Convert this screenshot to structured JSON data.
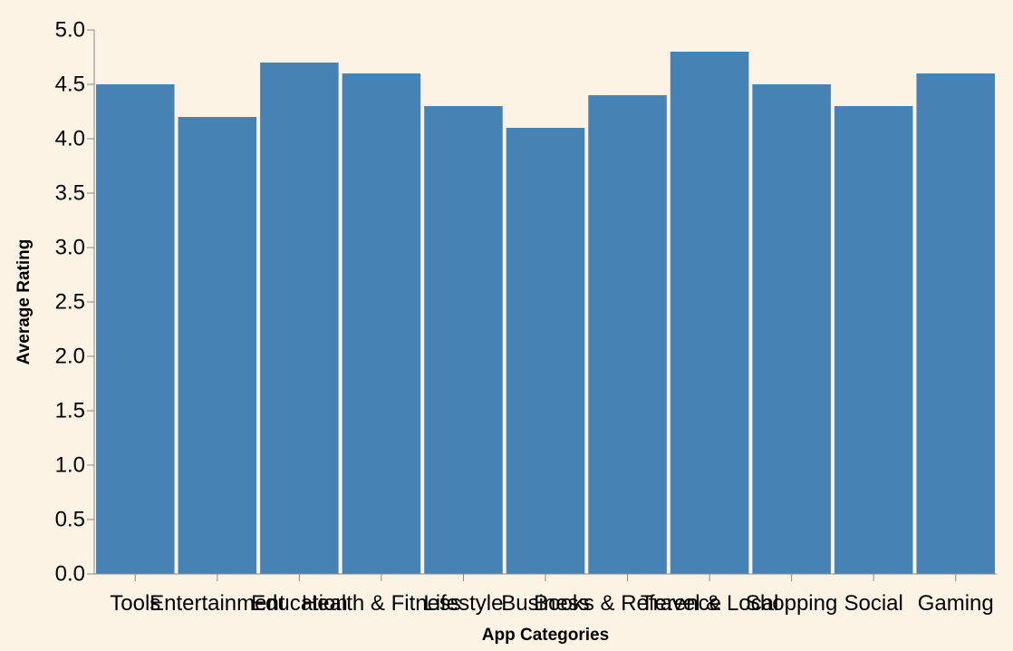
{
  "chart_data": {
    "type": "bar",
    "title": "",
    "xlabel": "App Categories",
    "ylabel": "Average Rating",
    "categories": [
      "Tools",
      "Entertainment",
      "Education",
      "Health & Fitness",
      "Lifestyle",
      "Business",
      "Books & Reference",
      "Travel & Local",
      "Shopping",
      "Social",
      "Gaming"
    ],
    "values": [
      4.5,
      4.2,
      4.7,
      4.6,
      4.3,
      4.1,
      4.4,
      4.8,
      4.5,
      4.3,
      4.6
    ],
    "ylim": [
      0,
      5
    ],
    "yticks": [
      "0.0",
      "0.5",
      "1.0",
      "1.5",
      "2.0",
      "2.5",
      "3.0",
      "3.5",
      "4.0",
      "4.5",
      "5.0"
    ],
    "grid": false,
    "colors": {
      "bar": "#4682b4",
      "background": "#fdf3e4",
      "axis": "#888888"
    }
  }
}
